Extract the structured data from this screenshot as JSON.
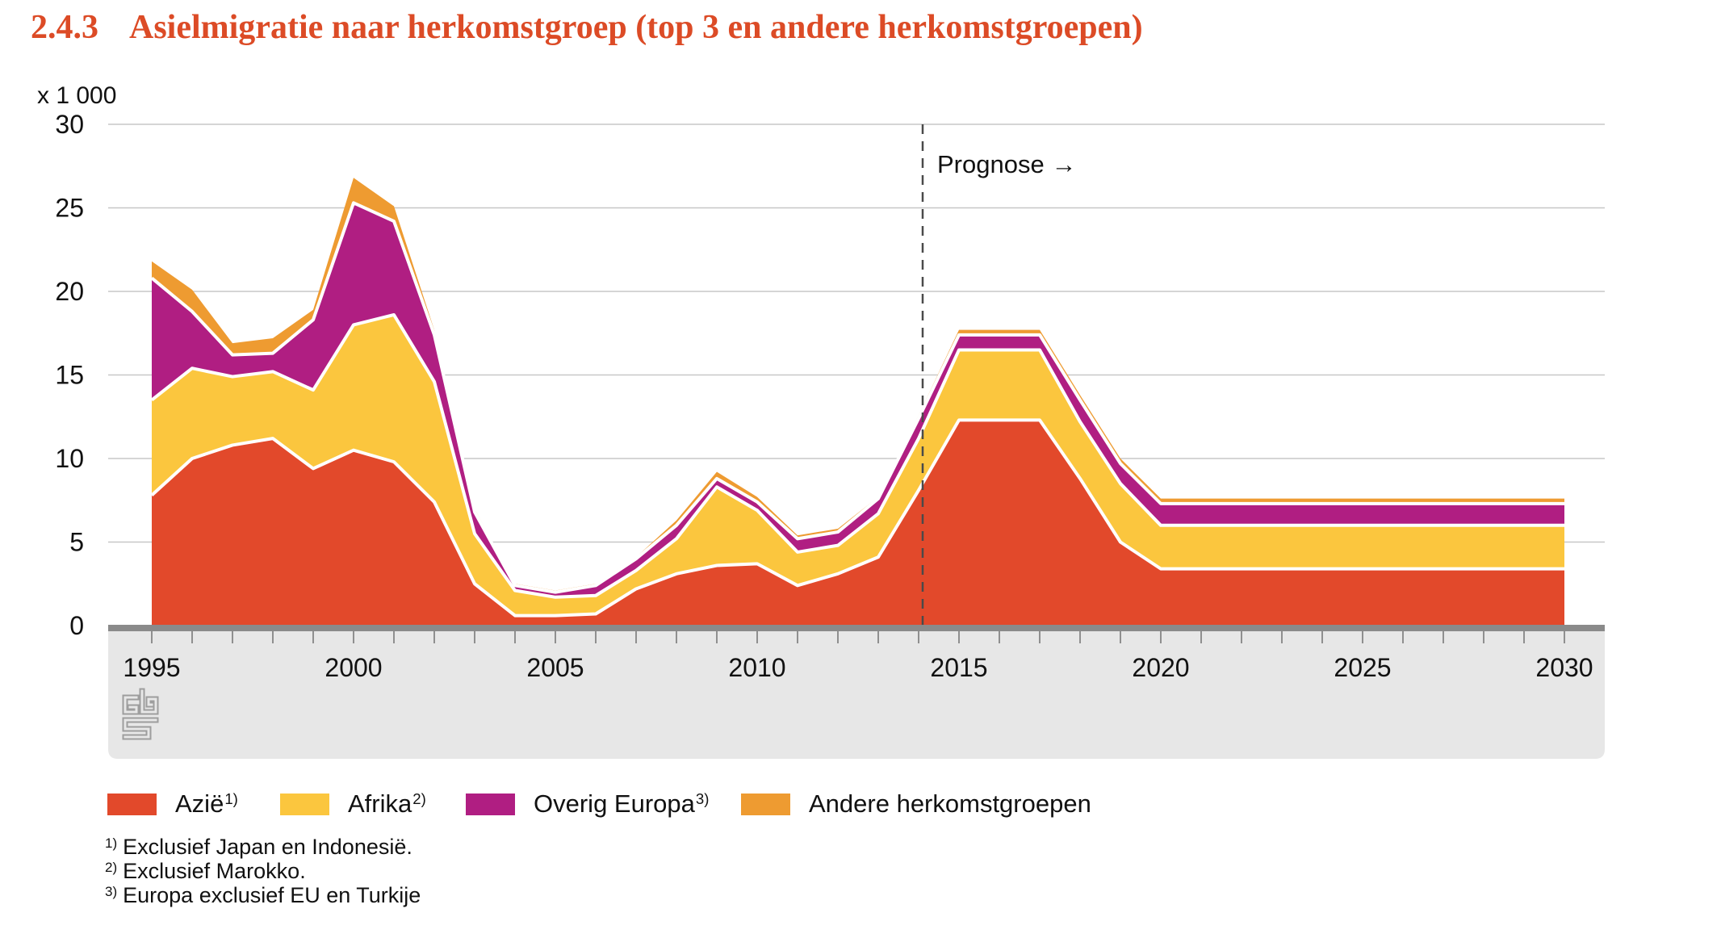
{
  "header": {
    "figure_number": "2.4.3",
    "title": "Asielmigratie naar herkomstgroep (top 3 en andere herkomstgroepen)"
  },
  "chart_data": {
    "type": "area",
    "stacked": true,
    "title": "Asielmigratie naar herkomstgroep (top 3 en andere herkomstgroepen)",
    "unit_label": "x 1 000",
    "ylabel": "x 1 000",
    "ylim": [
      0,
      30
    ],
    "y_ticks": [
      0,
      5,
      10,
      15,
      20,
      25,
      30
    ],
    "x_tick_labels": [
      "1995",
      "2000",
      "2005",
      "2010",
      "2015",
      "2020",
      "2025",
      "2030"
    ],
    "grid": "horizontal",
    "legend_position": "bottom",
    "forecast_start_year": 2014,
    "annotation": {
      "text": "Prognose →",
      "year": 2014.1
    },
    "x": [
      1995,
      1996,
      1997,
      1998,
      1999,
      2000,
      2001,
      2002,
      2003,
      2004,
      2005,
      2006,
      2007,
      2008,
      2009,
      2010,
      2011,
      2012,
      2013,
      2014,
      2015,
      2016,
      2017,
      2018,
      2019,
      2020,
      2021,
      2022,
      2023,
      2024,
      2025,
      2026,
      2027,
      2028,
      2029,
      2030
    ],
    "series": [
      {
        "name": "Azië",
        "footnote_marker": "1)",
        "color": "#E2492B",
        "values": [
          7.8,
          10.0,
          10.8,
          11.2,
          9.4,
          10.5,
          9.8,
          7.4,
          2.5,
          0.6,
          0.6,
          0.7,
          2.2,
          3.1,
          3.6,
          3.7,
          2.4,
          3.1,
          4.1,
          8.1,
          12.3,
          12.3,
          12.3,
          8.8,
          5.0,
          3.4,
          3.4,
          3.4,
          3.4,
          3.4,
          3.4,
          3.4,
          3.4,
          3.4,
          3.4,
          3.4
        ]
      },
      {
        "name": "Afrika",
        "footnote_marker": "2)",
        "color": "#FBC63E",
        "values": [
          5.7,
          5.4,
          4.1,
          4.0,
          4.7,
          7.5,
          8.8,
          7.2,
          3.0,
          1.5,
          1.1,
          1.1,
          1.1,
          2.1,
          4.7,
          3.2,
          2.0,
          1.7,
          2.6,
          3.1,
          4.2,
          4.2,
          4.2,
          3.4,
          3.5,
          2.6,
          2.6,
          2.6,
          2.6,
          2.6,
          2.6,
          2.6,
          2.6,
          2.6,
          2.6,
          2.6
        ]
      },
      {
        "name": "Overig Europa",
        "footnote_marker": "3)",
        "color": "#B01E82",
        "values": [
          7.3,
          3.4,
          1.3,
          1.1,
          4.2,
          7.3,
          5.6,
          2.8,
          1.3,
          0.3,
          0.3,
          0.6,
          0.7,
          0.8,
          0.5,
          0.5,
          0.8,
          0.8,
          0.9,
          1.2,
          0.9,
          0.9,
          0.9,
          1.3,
          1.2,
          1.3,
          1.3,
          1.3,
          1.3,
          1.3,
          1.3,
          1.3,
          1.3,
          1.3,
          1.3,
          1.3
        ]
      },
      {
        "name": "Andere herkomstgroepen",
        "footnote_marker": "",
        "color": "#EE9B31",
        "values": [
          1.0,
          1.3,
          0.7,
          0.9,
          0.6,
          1.5,
          0.9,
          0.3,
          0.2,
          0.1,
          0.1,
          0.1,
          0.1,
          0.3,
          0.4,
          0.3,
          0.2,
          0.2,
          0.1,
          0.2,
          0.3,
          0.3,
          0.3,
          0.3,
          0.3,
          0.3,
          0.3,
          0.3,
          0.3,
          0.3,
          0.3,
          0.3,
          0.3,
          0.3,
          0.3,
          0.3
        ]
      }
    ]
  },
  "footnotes": [
    {
      "marker": "1)",
      "text": "Exclusief Japan en Indonesië."
    },
    {
      "marker": "2)",
      "text": "Exclusief Marokko."
    },
    {
      "marker": "3)",
      "text": "Europa exclusief EU en Turkije"
    }
  ],
  "colors": {
    "title": "#DC4B26",
    "azie": "#E2492B",
    "afrika": "#FBC63E",
    "overig_europa": "#B01E82",
    "andere": "#EE9B31",
    "axis_bar": "#8A8A8A",
    "footer_band": "#E7E7E7",
    "gridline": "#C7C7C7"
  }
}
